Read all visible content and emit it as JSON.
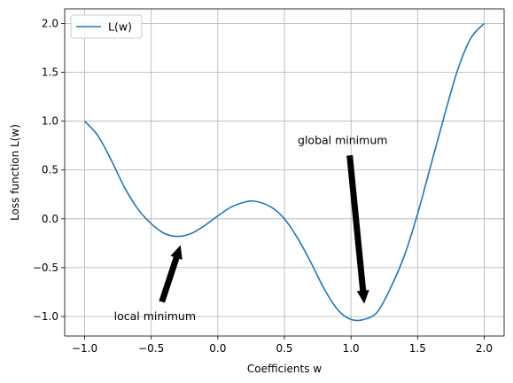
{
  "chart_data": {
    "type": "line",
    "title": "",
    "xlabel": "Coefficients w",
    "ylabel": "Loss function L(w)",
    "xlim": [
      -1.15,
      2.15
    ],
    "ylim": [
      -1.2,
      2.15
    ],
    "grid": true,
    "legend_position": "upper-left",
    "x_ticks": [
      -1.0,
      -0.5,
      0.0,
      0.5,
      1.0,
      1.5,
      2.0
    ],
    "x_tick_labels": [
      "−1.0",
      "−0.5",
      "0.0",
      "0.5",
      "1.0",
      "1.5",
      "2.0"
    ],
    "y_ticks": [
      -1.0,
      -0.5,
      0.0,
      0.5,
      1.0,
      1.5,
      2.0
    ],
    "y_tick_labels": [
      "−1.0",
      "−0.5",
      "0.0",
      "0.5",
      "1.0",
      "1.5",
      "2.0"
    ],
    "series": [
      {
        "name": "L(w)",
        "color": "#1f77b4",
        "x": [
          -1.0,
          -0.9,
          -0.8,
          -0.7,
          -0.6,
          -0.5,
          -0.4,
          -0.3,
          -0.2,
          -0.1,
          0.0,
          0.1,
          0.2,
          0.28,
          0.4,
          0.5,
          0.6,
          0.7,
          0.8,
          0.9,
          1.0,
          1.1,
          1.2,
          1.3,
          1.4,
          1.5,
          1.6,
          1.7,
          1.8,
          1.9,
          2.0
        ],
        "y": [
          1.0,
          0.85,
          0.6,
          0.32,
          0.1,
          -0.05,
          -0.15,
          -0.18,
          -0.15,
          -0.07,
          0.03,
          0.12,
          0.17,
          0.18,
          0.12,
          0.0,
          -0.2,
          -0.45,
          -0.72,
          -0.93,
          -1.03,
          -1.03,
          -0.95,
          -0.7,
          -0.38,
          0.05,
          0.55,
          1.05,
          1.52,
          1.85,
          2.0
        ]
      }
    ],
    "annotations": [
      {
        "text": "local minimum",
        "text_x": -0.78,
        "text_y": -1.0,
        "arrow_from": [
          -0.42,
          -0.85
        ],
        "arrow_to": [
          -0.28,
          -0.27
        ]
      },
      {
        "text": "global minimum",
        "text_x": 0.6,
        "text_y": 0.8,
        "arrow_from": [
          0.99,
          0.65
        ],
        "arrow_to": [
          1.1,
          -0.87
        ]
      }
    ],
    "colors": {
      "grid": "#b0b0b0",
      "axes": "#000000",
      "legend_border": "#cccccc"
    }
  }
}
